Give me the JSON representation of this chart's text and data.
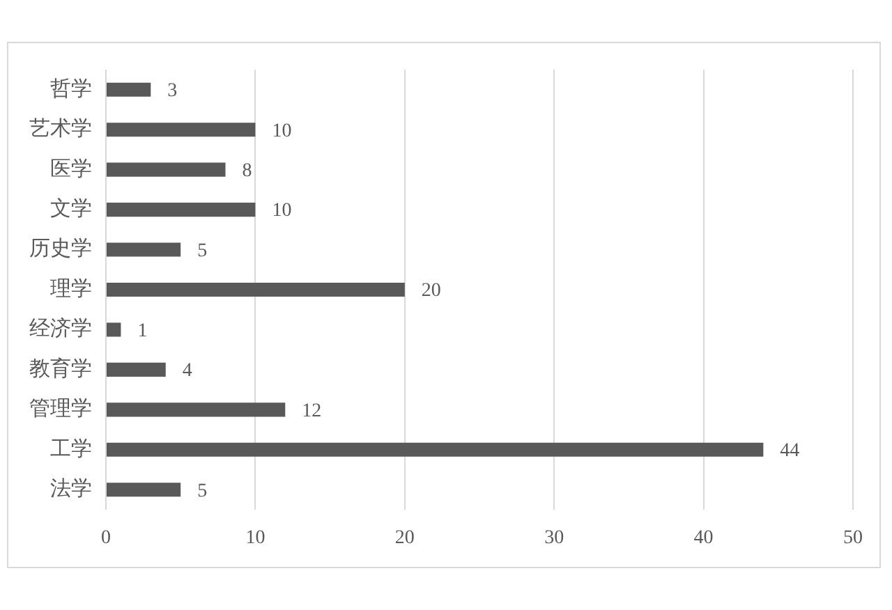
{
  "chart_data": {
    "type": "bar",
    "orientation": "horizontal",
    "categories": [
      "哲学",
      "艺术学",
      "医学",
      "文学",
      "历史学",
      "理学",
      "经济学",
      "教育学",
      "管理学",
      "工学",
      "法学"
    ],
    "values": [
      3,
      10,
      8,
      10,
      5,
      20,
      1,
      4,
      12,
      44,
      5
    ],
    "color": "#595959",
    "xlim": [
      0,
      50
    ],
    "xticks": [
      0,
      10,
      20,
      30,
      40,
      50
    ],
    "grid": "x",
    "data_labels": true
  }
}
